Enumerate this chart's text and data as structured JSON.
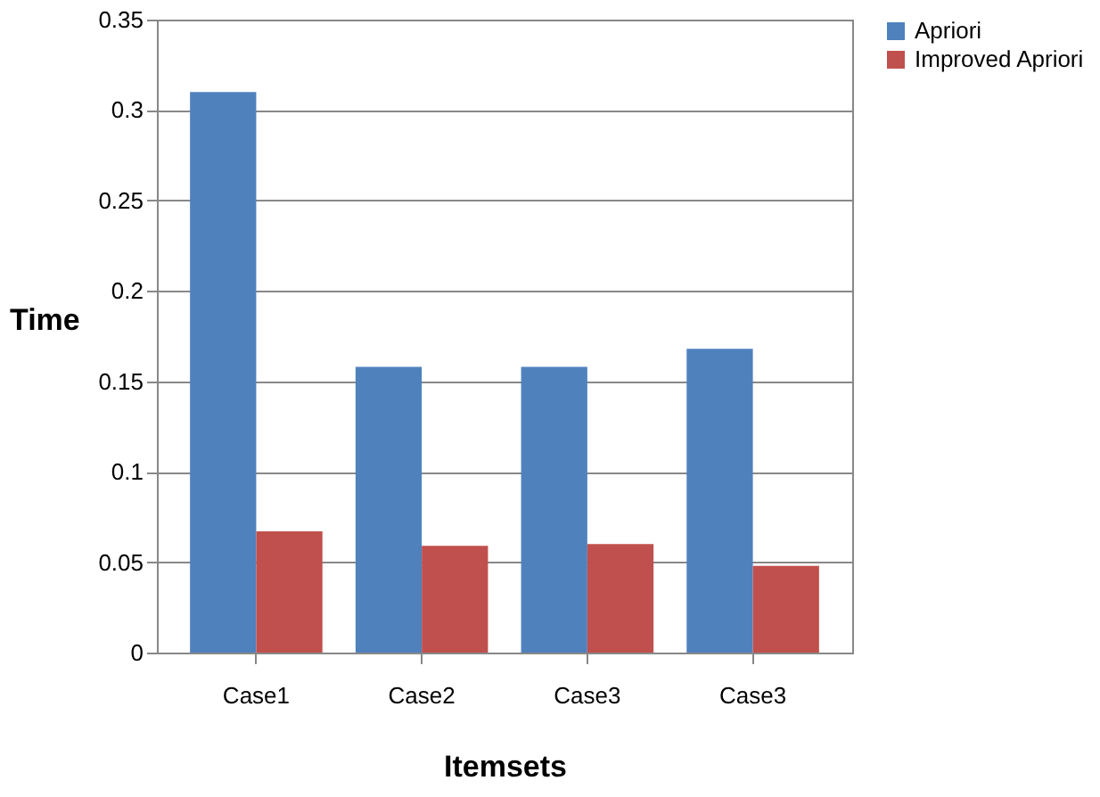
{
  "chart_data": {
    "type": "bar",
    "xlabel": "Itemsets",
    "ylabel": "Time",
    "categories": [
      "Case1",
      "Case2",
      "Case3",
      "Case3"
    ],
    "series": [
      {
        "name": "Apriori",
        "color": "#4f81bd",
        "values": [
          0.31,
          0.158,
          0.158,
          0.168
        ]
      },
      {
        "name": "Improved Apriori",
        "color": "#c0504d",
        "values": [
          0.067,
          0.059,
          0.06,
          0.048
        ]
      }
    ],
    "ylim": [
      0,
      0.35
    ],
    "yticks": [
      0,
      0.05,
      0.1,
      0.15,
      0.2,
      0.25,
      0.3,
      0.35
    ],
    "grid": "y",
    "legend": "right"
  }
}
